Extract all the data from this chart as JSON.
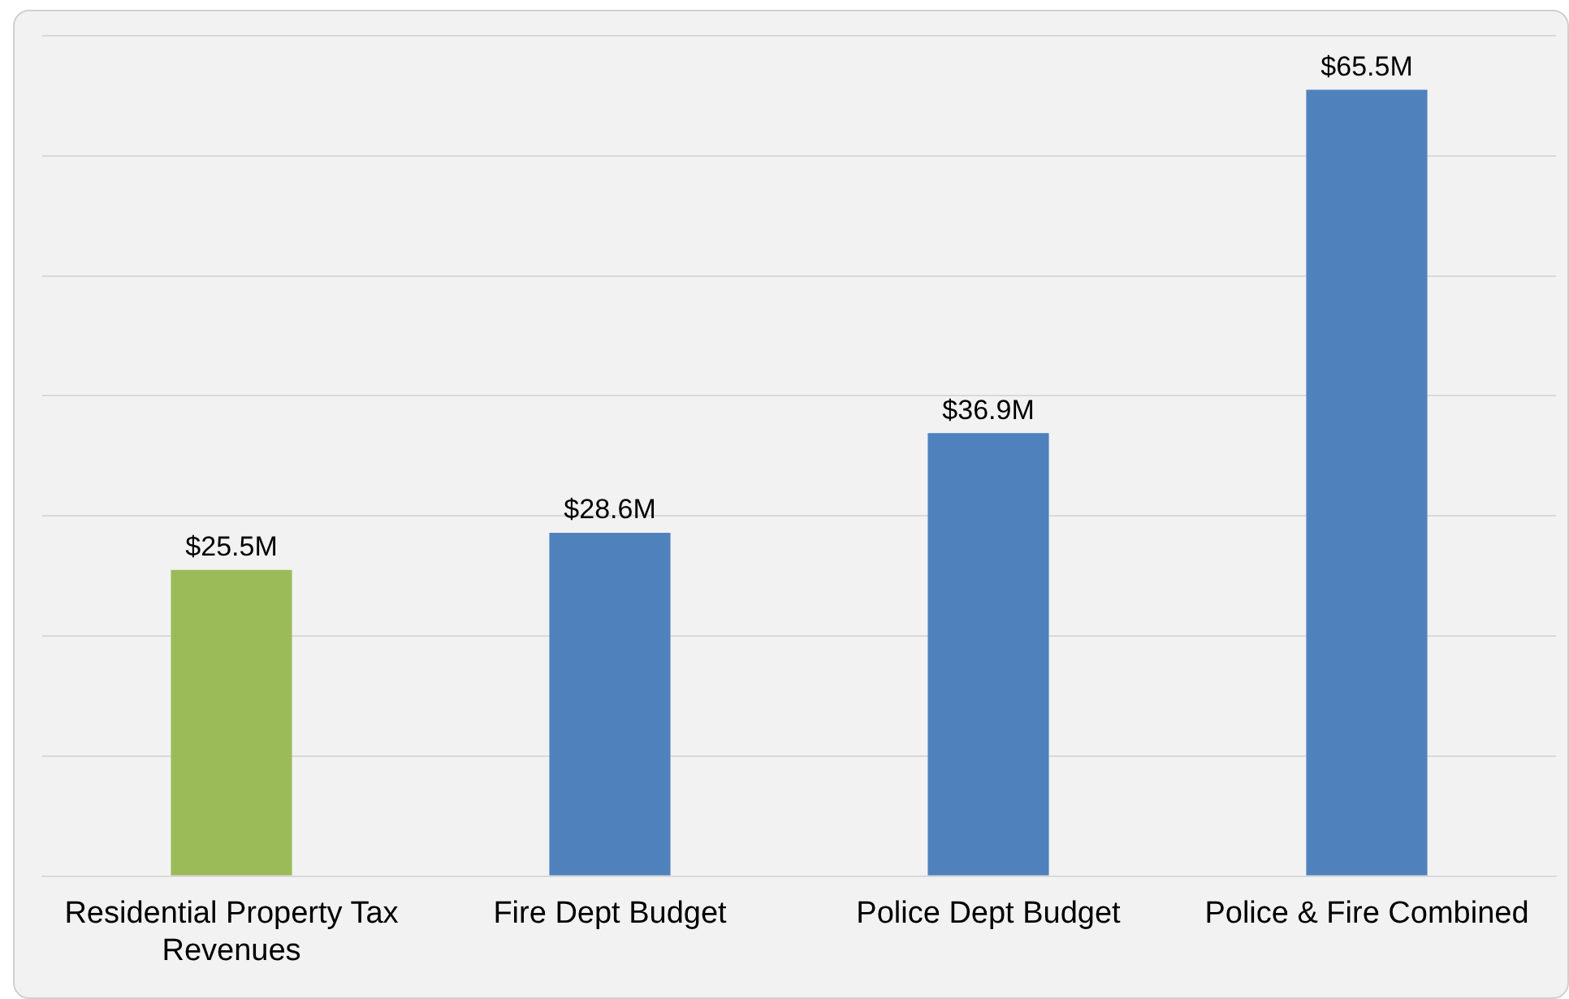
{
  "chart_data": {
    "type": "bar",
    "categories": [
      "Residential Property Tax Revenues",
      "Fire Dept Budget",
      "Police Dept Budget",
      "Police & Fire Combined"
    ],
    "values": [
      25.5,
      28.6,
      36.9,
      65.5
    ],
    "colors": [
      "#9bbb59",
      "#4f81bd",
      "#4f81bd",
      "#4f81bd"
    ],
    "value_labels": [
      "$25.5M",
      "$28.6M",
      "$36.9M",
      "$65.5M"
    ],
    "ylim": [
      0,
      70
    ],
    "yticks": [
      {
        "value": 0,
        "label": null
      },
      {
        "value": 10,
        "label": null
      },
      {
        "value": 20,
        "label": null
      },
      {
        "value": 30,
        "label": null
      },
      {
        "value": 40,
        "label": null
      },
      {
        "value": 50,
        "label": null
      },
      {
        "value": 60,
        "label": null
      },
      {
        "value": 70,
        "label": null
      }
    ],
    "grid": "y",
    "tick_labels": "x",
    "legend": false
  }
}
